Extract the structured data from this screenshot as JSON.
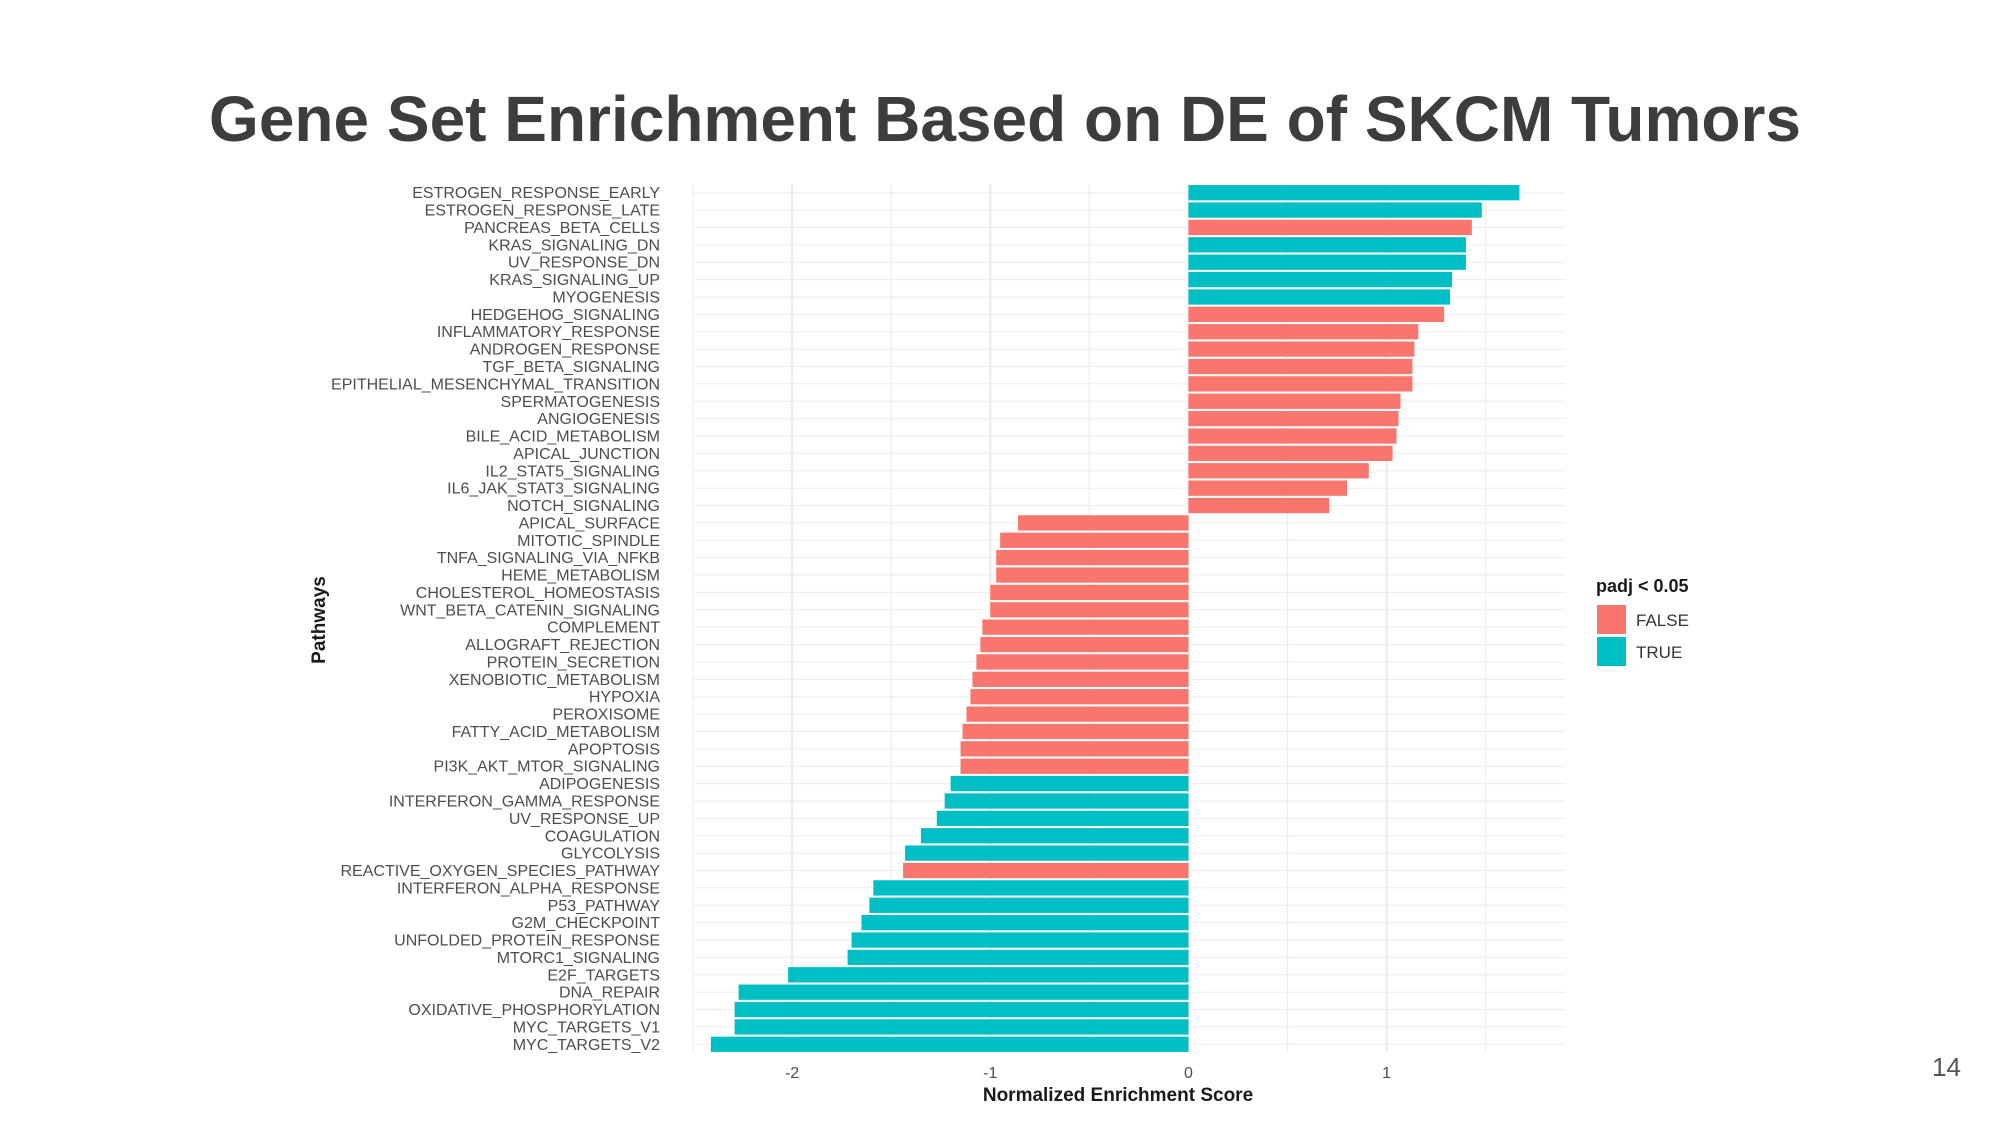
{
  "slide": {
    "title": "Gene Set Enrichment Based on DE of SKCM Tumors",
    "page_number": "14"
  },
  "colors": {
    "FALSE": "#F8766D",
    "TRUE": "#00BFC4",
    "grid": "#ebebeb"
  },
  "chart_data": {
    "type": "bar",
    "orientation": "horizontal",
    "xlabel": "Normalized Enrichment Score",
    "ylabel": "Pathways",
    "xlim": [
      -2.5,
      1.9
    ],
    "xticks": [
      -2,
      -1,
      0,
      1
    ],
    "xtick_labels": [
      "-2",
      "-1",
      "0",
      "1"
    ],
    "legend": {
      "title": "padj < 0.05",
      "position": "right",
      "entries": [
        "FALSE",
        "TRUE"
      ]
    },
    "categories": [
      "ESTROGEN_RESPONSE_EARLY",
      "ESTROGEN_RESPONSE_LATE",
      "PANCREAS_BETA_CELLS",
      "KRAS_SIGNALING_DN",
      "UV_RESPONSE_DN",
      "KRAS_SIGNALING_UP",
      "MYOGENESIS",
      "HEDGEHOG_SIGNALING",
      "INFLAMMATORY_RESPONSE",
      "ANDROGEN_RESPONSE",
      "TGF_BETA_SIGNALING",
      "EPITHELIAL_MESENCHYMAL_TRANSITION",
      "SPERMATOGENESIS",
      "ANGIOGENESIS",
      "BILE_ACID_METABOLISM",
      "APICAL_JUNCTION",
      "IL2_STAT5_SIGNALING",
      "IL6_JAK_STAT3_SIGNALING",
      "NOTCH_SIGNALING",
      "APICAL_SURFACE",
      "MITOTIC_SPINDLE",
      "TNFA_SIGNALING_VIA_NFKB",
      "HEME_METABOLISM",
      "CHOLESTEROL_HOMEOSTASIS",
      "WNT_BETA_CATENIN_SIGNALING",
      "COMPLEMENT",
      "ALLOGRAFT_REJECTION",
      "PROTEIN_SECRETION",
      "XENOBIOTIC_METABOLISM",
      "HYPOXIA",
      "PEROXISOME",
      "FATTY_ACID_METABOLISM",
      "APOPTOSIS",
      "PI3K_AKT_MTOR_SIGNALING",
      "ADIPOGENESIS",
      "INTERFERON_GAMMA_RESPONSE",
      "UV_RESPONSE_UP",
      "COAGULATION",
      "GLYCOLYSIS",
      "REACTIVE_OXYGEN_SPECIES_PATHWAY",
      "INTERFERON_ALPHA_RESPONSE",
      "P53_PATHWAY",
      "G2M_CHECKPOINT",
      "UNFOLDED_PROTEIN_RESPONSE",
      "MTORC1_SIGNALING",
      "E2F_TARGETS",
      "DNA_REPAIR",
      "OXIDATIVE_PHOSPHORYLATION",
      "MYC_TARGETS_V1",
      "MYC_TARGETS_V2"
    ],
    "values": [
      1.67,
      1.48,
      1.43,
      1.4,
      1.4,
      1.33,
      1.32,
      1.29,
      1.16,
      1.14,
      1.13,
      1.13,
      1.07,
      1.06,
      1.05,
      1.03,
      0.91,
      0.8,
      0.71,
      -0.86,
      -0.95,
      -0.97,
      -0.97,
      -1.0,
      -1.0,
      -1.04,
      -1.05,
      -1.07,
      -1.09,
      -1.1,
      -1.12,
      -1.14,
      -1.15,
      -1.15,
      -1.2,
      -1.23,
      -1.27,
      -1.35,
      -1.43,
      -1.44,
      -1.59,
      -1.61,
      -1.65,
      -1.7,
      -1.72,
      -2.02,
      -2.27,
      -2.29,
      -2.29,
      -2.41
    ],
    "padj_significant": [
      "TRUE",
      "TRUE",
      "FALSE",
      "TRUE",
      "TRUE",
      "TRUE",
      "TRUE",
      "FALSE",
      "FALSE",
      "FALSE",
      "FALSE",
      "FALSE",
      "FALSE",
      "FALSE",
      "FALSE",
      "FALSE",
      "FALSE",
      "FALSE",
      "FALSE",
      "FALSE",
      "FALSE",
      "FALSE",
      "FALSE",
      "FALSE",
      "FALSE",
      "FALSE",
      "FALSE",
      "FALSE",
      "FALSE",
      "FALSE",
      "FALSE",
      "FALSE",
      "FALSE",
      "FALSE",
      "TRUE",
      "TRUE",
      "TRUE",
      "TRUE",
      "TRUE",
      "FALSE",
      "TRUE",
      "TRUE",
      "TRUE",
      "TRUE",
      "TRUE",
      "TRUE",
      "TRUE",
      "TRUE",
      "TRUE",
      "TRUE"
    ]
  }
}
